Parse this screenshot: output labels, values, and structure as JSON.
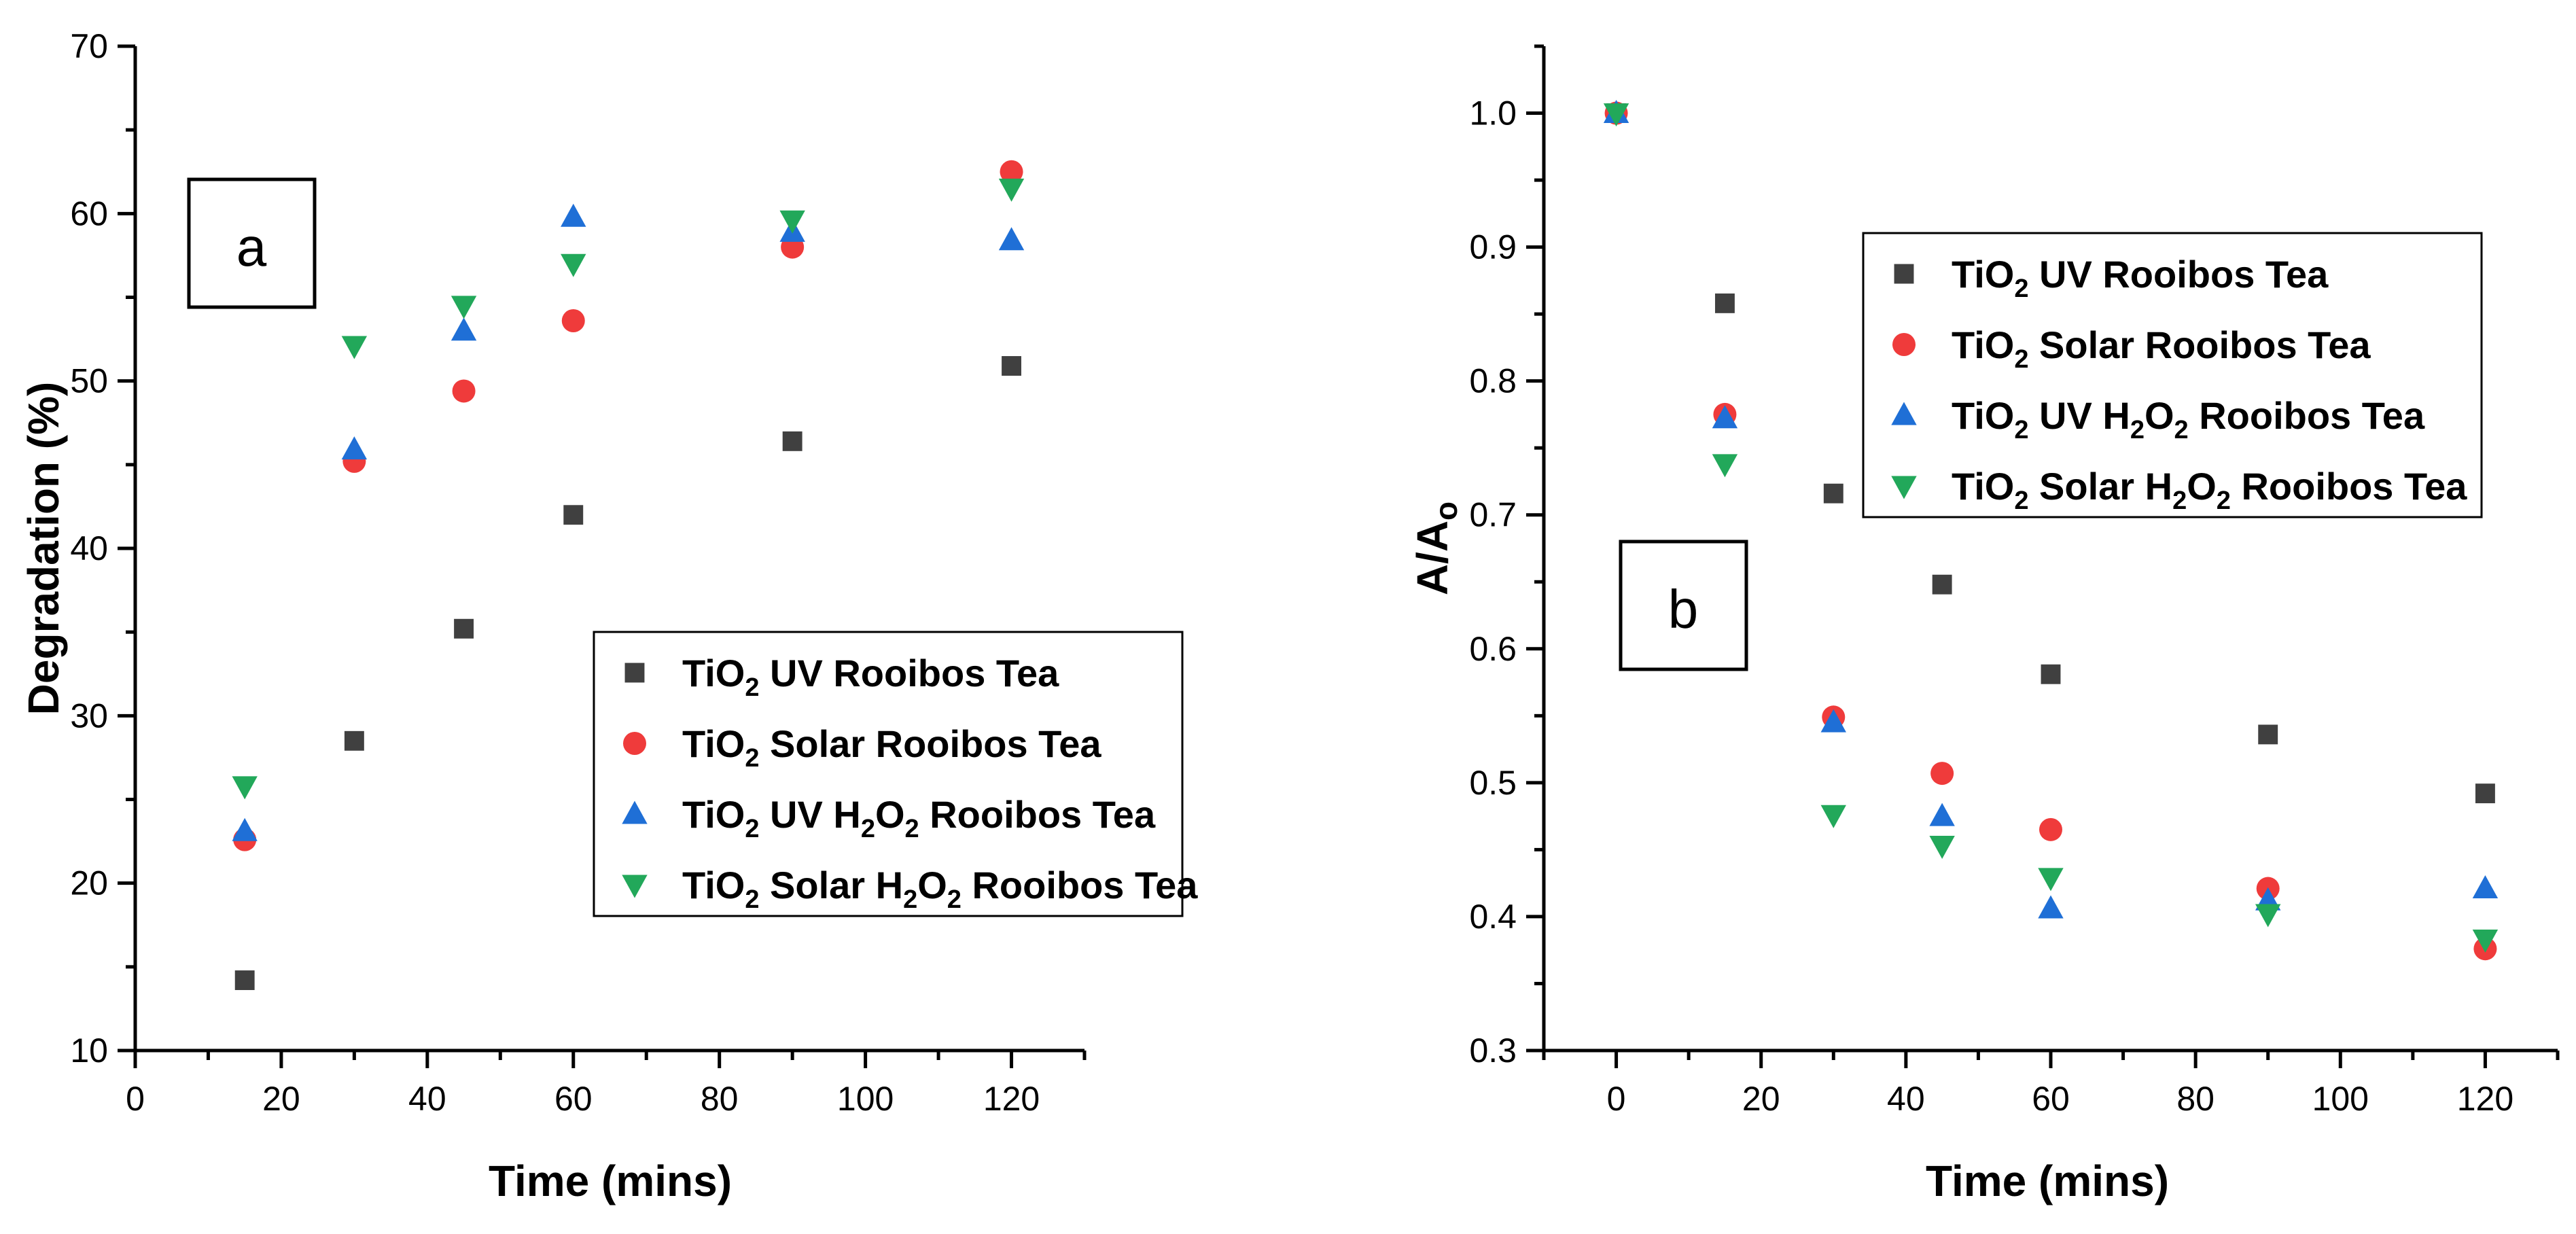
{
  "chart_data": [
    {
      "id": "a",
      "type": "scatter",
      "panel_label": "a",
      "xlabel": "Time (mins)",
      "ylabel": "Degradation (%)",
      "xlim": [
        0,
        130
      ],
      "ylim": [
        10,
        70
      ],
      "x_ticks": [
        0,
        20,
        40,
        60,
        80,
        100,
        120
      ],
      "y_ticks": [
        10,
        20,
        30,
        40,
        50,
        60,
        70
      ],
      "legend_position": "center-right",
      "series": [
        {
          "name": "TiO2 UV Rooibos Tea",
          "marker": "square",
          "color": "#404040",
          "x": [
            15,
            30,
            45,
            60,
            90,
            120
          ],
          "values": [
            14.2,
            28.5,
            35.2,
            42.0,
            46.4,
            50.9
          ]
        },
        {
          "name": "TiO2 Solar Rooibos Tea",
          "marker": "circle",
          "color": "#ef3b3b",
          "x": [
            15,
            30,
            45,
            60,
            90,
            120
          ],
          "values": [
            22.6,
            45.2,
            49.4,
            53.6,
            58.0,
            62.5
          ]
        },
        {
          "name": "TiO2 UV H2O2 Rooibos Tea",
          "marker": "triangle-up",
          "color": "#1f6fd6",
          "x": [
            15,
            30,
            45,
            60,
            90,
            120
          ],
          "values": [
            23.1,
            45.9,
            53.0,
            59.8,
            58.9,
            58.4
          ]
        },
        {
          "name": "TiO2 Solar H2O2 Rooibos Tea",
          "marker": "triangle-down",
          "color": "#22a85a",
          "x": [
            15,
            30,
            45,
            60,
            90,
            120
          ],
          "values": [
            25.8,
            52.1,
            54.5,
            57.0,
            59.6,
            61.5
          ]
        }
      ]
    },
    {
      "id": "b",
      "type": "scatter",
      "panel_label": "b",
      "xlabel": "Time (mins)",
      "ylabel": "A/A",
      "ylabel_sub": "o",
      "xlim": [
        -10,
        130
      ],
      "ylim": [
        0.3,
        1.05
      ],
      "x_ticks": [
        0,
        20,
        40,
        60,
        80,
        100,
        120
      ],
      "y_ticks": [
        0.3,
        0.4,
        0.5,
        0.6,
        0.7,
        0.8,
        0.9,
        1.0
      ],
      "y_tick_labels": [
        "0.3",
        "0.4",
        "0.5",
        "0.6",
        "0.7",
        "0.8",
        "0.9",
        "1.0"
      ],
      "legend_position": "top-right",
      "series": [
        {
          "name": "TiO2 UV Rooibos Tea",
          "marker": "square",
          "color": "#404040",
          "x": [
            0,
            15,
            30,
            45,
            60,
            90,
            120
          ],
          "values": [
            1.0,
            0.858,
            0.716,
            0.648,
            0.581,
            0.536,
            0.492
          ]
        },
        {
          "name": "TiO2 Solar Rooibos Tea",
          "marker": "circle",
          "color": "#ef3b3b",
          "x": [
            0,
            15,
            30,
            45,
            60,
            90,
            120
          ],
          "values": [
            1.0,
            0.775,
            0.549,
            0.507,
            0.465,
            0.421,
            0.376
          ]
        },
        {
          "name": "TiO2 UV H2O2 Rooibos Tea",
          "marker": "triangle-up",
          "color": "#1f6fd6",
          "x": [
            0,
            15,
            30,
            45,
            60,
            90,
            120
          ],
          "values": [
            1.0,
            0.772,
            0.545,
            0.475,
            0.406,
            0.412,
            0.421
          ]
        },
        {
          "name": "TiO2 Solar H2O2 Rooibos Tea",
          "marker": "triangle-down",
          "color": "#22a85a",
          "x": [
            0,
            15,
            30,
            45,
            60,
            90,
            120
          ],
          "values": [
            1.0,
            0.738,
            0.476,
            0.453,
            0.429,
            0.402,
            0.383
          ]
        }
      ]
    }
  ],
  "legend_parts": [
    {
      "main": "TiO",
      "sub": "2",
      "rest": " UV Rooibos Tea",
      "h2o2": false
    },
    {
      "main": "TiO",
      "sub": "2",
      "rest": " Solar Rooibos Tea",
      "h2o2": false
    },
    {
      "main": "TiO",
      "sub": "2",
      "rest": " UV H",
      "sub2": "2",
      "mid": "O",
      "sub3": "2",
      "rest2": " Rooibos Tea",
      "h2o2": true
    },
    {
      "main": "TiO",
      "sub": "2",
      "rest": " Solar H",
      "sub2": "2",
      "mid": "O",
      "sub3": "2",
      "rest2": " Rooibos Tea",
      "h2o2": true
    }
  ]
}
